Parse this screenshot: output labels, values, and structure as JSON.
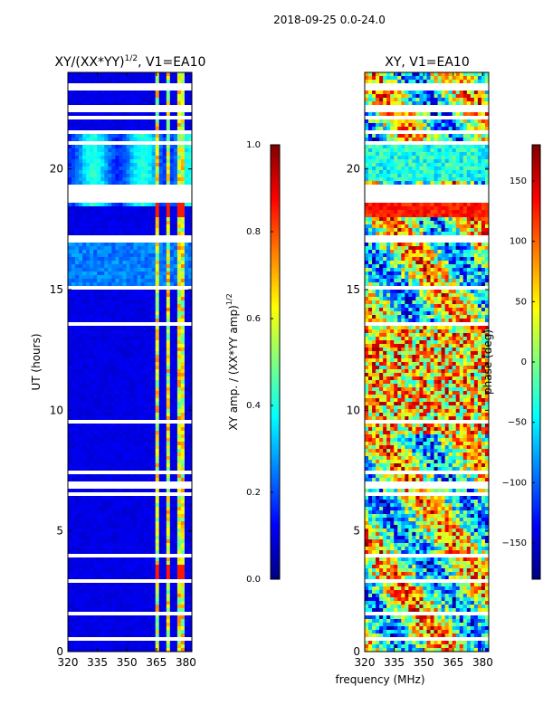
{
  "suptitle": "2018-09-25 0.0-24.0",
  "shared_xlabel": "frequency (MHz)",
  "colors": {
    "jet": [
      "#00007f",
      "#0000ff",
      "#007fff",
      "#00ffff",
      "#7fff7f",
      "#ffff00",
      "#ff7f00",
      "#ff0000",
      "#7f0000"
    ],
    "gap": "#ffffff",
    "axis": "#000000"
  },
  "chart_data": [
    {
      "type": "heatmap",
      "title": "XY/(XX*YY)",
      "title_exp": "1/2",
      "title_suffix": ", V1=EA10",
      "xlabel": "",
      "ylabel": "UT (hours)",
      "x_ticks": [
        "320",
        "335",
        "350",
        "365",
        "380"
      ],
      "x_tick_values": [
        320,
        335,
        350,
        365,
        380
      ],
      "xlim": [
        320,
        383
      ],
      "y_ticks": [
        "0",
        "5",
        "10",
        "15",
        "20"
      ],
      "y_tick_values": [
        0,
        5,
        10,
        15,
        20
      ],
      "ylim": [
        0,
        24
      ],
      "colorbar": {
        "label": "XY amp. / (XX*YY amp)",
        "label_exp": "1/2",
        "ticks": [
          "0.0",
          "0.2",
          "0.4",
          "0.6",
          "0.8",
          "1.0"
        ],
        "tick_values": [
          0.0,
          0.2,
          0.4,
          0.6,
          0.8,
          1.0
        ],
        "range": [
          0,
          1
        ]
      }
    },
    {
      "type": "heatmap",
      "title": "XY, V1=EA10",
      "xlabel": "frequency (MHz)",
      "ylabel": "",
      "x_ticks": [
        "320",
        "335",
        "350",
        "365",
        "380"
      ],
      "x_tick_values": [
        320,
        335,
        350,
        365,
        380
      ],
      "xlim": [
        320,
        383
      ],
      "y_ticks": [
        "0",
        "5",
        "10",
        "15",
        "20"
      ],
      "y_tick_values": [
        0,
        5,
        10,
        15,
        20
      ],
      "ylim": [
        0,
        24
      ],
      "colorbar": {
        "label": "phase (deg)",
        "ticks": [
          "−150",
          "−100",
          "−50",
          "0",
          "50",
          "100",
          "150"
        ],
        "tick_values": [
          -150,
          -100,
          -50,
          0,
          50,
          100,
          150
        ],
        "range": [
          -180,
          180
        ]
      }
    }
  ]
}
